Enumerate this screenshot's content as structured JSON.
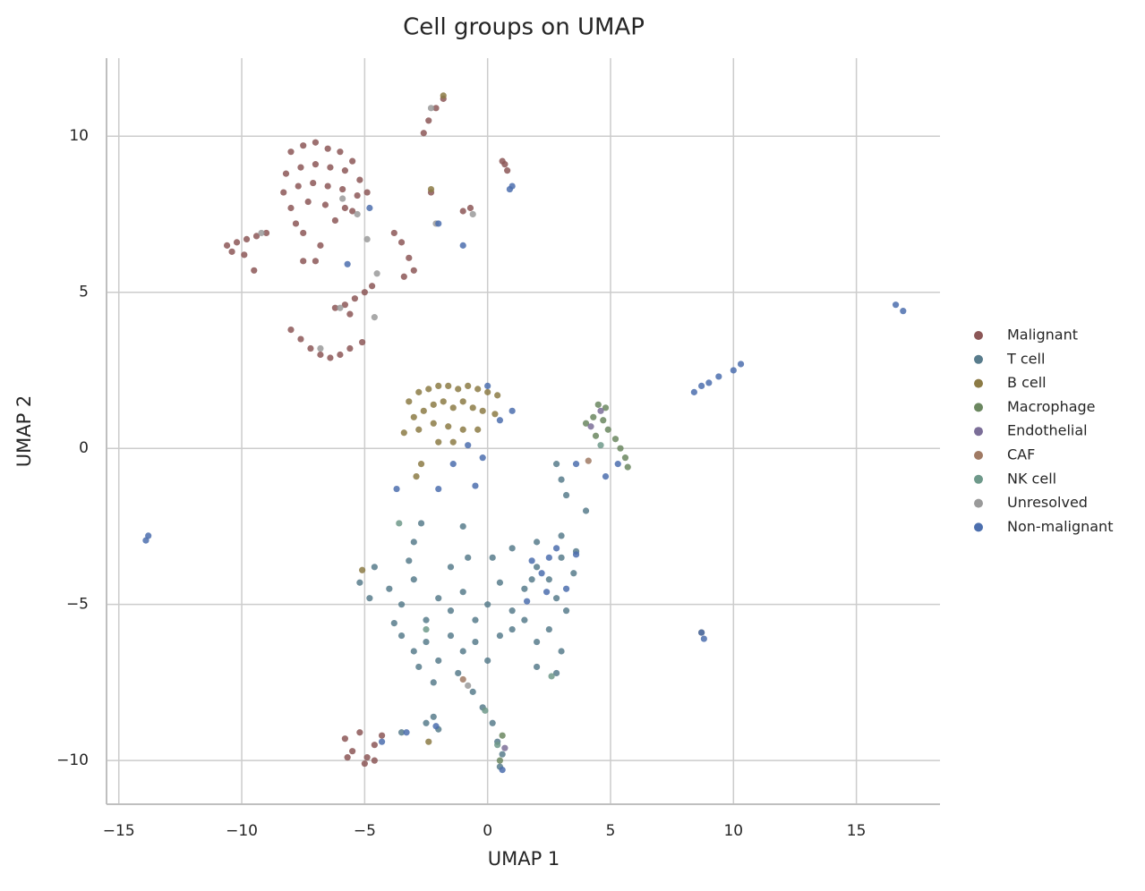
{
  "chart_data": {
    "type": "scatter",
    "title": "Cell groups on UMAP",
    "x_label": "UMAP 1",
    "y_label": "UMAP 2",
    "xlim": [
      -15.5,
      18.4
    ],
    "ylim": [
      -11.4,
      12.5
    ],
    "xticks": [
      {
        "value": -15,
        "label": "−15"
      },
      {
        "value": -10,
        "label": "−10"
      },
      {
        "value": -5,
        "label": "−5"
      },
      0,
      5,
      10,
      15
    ],
    "yticks": [
      {
        "value": -10,
        "label": "−10"
      },
      {
        "value": -5,
        "label": "−5"
      },
      0,
      5,
      10
    ],
    "grid": true,
    "legend": "right",
    "series": [
      {
        "name": "Malignant",
        "color": "#8c5757",
        "x": [
          -8,
          -7.5,
          -7,
          -6.5,
          -6,
          -5.5,
          -8.2,
          -7.6,
          -7,
          -6.4,
          -5.8,
          -5.2,
          -8.3,
          -7.7,
          -7.1,
          -6.5,
          -5.9,
          -5.3,
          -8,
          -7.3,
          -6.6,
          -5.8,
          -7.8,
          -6.2,
          -5.5,
          -4.9,
          -10.6,
          -10.2,
          -9.8,
          -9.4,
          -9,
          -10.4,
          -9.9,
          -9.5,
          -7.5,
          -7,
          -6.8,
          -7.5,
          -3.5,
          -3.2,
          -3,
          -3.4,
          -3.8,
          -6.2,
          -5.8,
          -5.4,
          -5,
          -4.7,
          -5.6,
          -8,
          -7.6,
          -7.2,
          -6.8,
          -6.4,
          -6,
          -5.6,
          -5.1,
          -2.4,
          -2.1,
          -1.8,
          -2.6,
          0.6,
          0.8,
          0.7,
          -2.3,
          -1,
          -0.7,
          -5.8,
          -5.5,
          -5.2,
          -4.9,
          -4.6,
          -4.3,
          -4.6,
          -5.7,
          -5
        ],
        "values": [
          9.5,
          9.7,
          9.8,
          9.6,
          9.5,
          9.2,
          8.8,
          9,
          9.1,
          9,
          8.9,
          8.6,
          8.2,
          8.4,
          8.5,
          8.4,
          8.3,
          8.1,
          7.7,
          7.9,
          7.8,
          7.7,
          7.2,
          7.3,
          7.6,
          8.2,
          6.5,
          6.6,
          6.7,
          6.8,
          6.9,
          6.3,
          6.2,
          5.7,
          6,
          6,
          6.5,
          6.9,
          6.6,
          6.1,
          5.7,
          5.5,
          6.9,
          4.5,
          4.6,
          4.8,
          5,
          5.2,
          4.3,
          3.8,
          3.5,
          3.2,
          3,
          2.9,
          3,
          3.2,
          3.4,
          10.5,
          10.9,
          11.2,
          10.1,
          9.2,
          8.9,
          9.1,
          8.2,
          7.6,
          7.7,
          -9.3,
          -9.7,
          -9.1,
          -9.9,
          -9.5,
          -9.2,
          -10,
          -9.9,
          -10.1
        ]
      },
      {
        "name": "T cell",
        "color": "#587c8c",
        "x": [
          -4,
          -3.5,
          -3,
          -2.5,
          -2,
          -1.5,
          -1,
          -0.5,
          0,
          0.5,
          1,
          1.5,
          2,
          2.5,
          3,
          3.5,
          2,
          3,
          1,
          0.2,
          -3.5,
          -3,
          -2.5,
          -2,
          -1.5,
          -1,
          -0.5,
          0,
          0.5,
          1,
          1.5,
          2,
          2.5,
          3,
          2.8,
          2,
          -2.8,
          -2.2,
          -1.2,
          -0.6,
          -0.2,
          0.2,
          -3,
          -2.7,
          -3.2,
          -4.6,
          -5.2,
          -4.8,
          -2.5,
          -2.2,
          -2,
          -3.5,
          0.4,
          0.6,
          0.5,
          -1.5,
          -0.8,
          -3.8,
          1.8,
          2.8,
          3.2,
          3.6,
          -1,
          4,
          3.2,
          3,
          2.8
        ],
        "values": [
          -4.5,
          -5,
          -4.2,
          -5.5,
          -4.8,
          -5.2,
          -4.6,
          -5.5,
          -5,
          -4.3,
          -5.2,
          -4.5,
          -3.8,
          -4.2,
          -3.5,
          -4,
          -3,
          -2.8,
          -3.2,
          -3.5,
          -6,
          -6.5,
          -6.2,
          -6.8,
          -6,
          -6.5,
          -6.2,
          -6.8,
          -6,
          -5.8,
          -5.5,
          -6.2,
          -5.8,
          -6.5,
          -7.2,
          -7,
          -7,
          -7.5,
          -7.2,
          -7.8,
          -8.3,
          -8.8,
          -3,
          -2.4,
          -3.6,
          -3.8,
          -4.3,
          -4.8,
          -8.8,
          -8.6,
          -9,
          -9.1,
          -9.4,
          -9.8,
          -10.2,
          -3.8,
          -3.5,
          -5.6,
          -4.2,
          -4.8,
          -5.2,
          -3.3,
          -2.5,
          -2,
          -1.5,
          -1,
          -0.5
        ]
      },
      {
        "name": "B cell",
        "color": "#8c7b45",
        "x": [
          -3.2,
          -2.8,
          -2.4,
          -2,
          -1.6,
          -1.2,
          -0.8,
          -0.4,
          0,
          0.4,
          -3,
          -2.6,
          -2.2,
          -1.8,
          -1.4,
          -1,
          -0.6,
          -0.2,
          0.3,
          -3.4,
          -2.8,
          -2.2,
          -1.6,
          -1,
          -0.4,
          -2,
          -1.4,
          -2.7,
          -2.9,
          -2.4,
          -5.1,
          8.7,
          -2.3,
          -1.8
        ],
        "values": [
          1.5,
          1.8,
          1.9,
          2,
          2,
          1.9,
          2,
          1.9,
          1.8,
          1.7,
          1,
          1.2,
          1.4,
          1.5,
          1.3,
          1.5,
          1.3,
          1.2,
          1.1,
          0.5,
          0.6,
          0.8,
          0.7,
          0.6,
          0.6,
          0.2,
          0.2,
          -0.5,
          -0.9,
          -9.4,
          -3.9,
          -5.9,
          8.3,
          11.3
        ]
      },
      {
        "name": "Macrophage",
        "color": "#6b8760",
        "x": [
          4.5,
          4.8,
          4.3,
          4.7,
          4.9,
          5.2,
          5.4,
          5.6,
          5.7,
          4,
          4.4,
          0.5,
          0.6
        ],
        "values": [
          1.4,
          1.3,
          1,
          0.9,
          0.6,
          0.3,
          0,
          -0.3,
          -0.6,
          0.8,
          0.4,
          -10,
          -9.2
        ]
      },
      {
        "name": "Endothelial",
        "color": "#7b6e98",
        "x": [
          4.6,
          4.2,
          0.7
        ],
        "values": [
          1.2,
          0.7,
          -9.6
        ]
      },
      {
        "name": "CAF",
        "color": "#a07a64",
        "x": [
          4.1,
          -1
        ],
        "values": [
          -0.4,
          -7.4
        ]
      },
      {
        "name": "NK cell",
        "color": "#6e998a",
        "x": [
          0.4,
          -0.1,
          2.6,
          -2.5,
          -3.6,
          4.6
        ],
        "values": [
          -9.5,
          -8.4,
          -7.3,
          -5.8,
          -2.4,
          0.1
        ]
      },
      {
        "name": "Unresolved",
        "color": "#9a9a9a",
        "x": [
          -6,
          -5.9,
          -4.9,
          -2.3,
          -2.1,
          -4.6,
          -6.8,
          -9.2,
          -0.6,
          -0.8,
          -4.5,
          -5.3
        ],
        "values": [
          4.5,
          8,
          6.7,
          10.9,
          7.2,
          4.2,
          3.2,
          6.9,
          7.5,
          -7.6,
          5.6,
          7.5
        ]
      },
      {
        "name": "Non-malignant",
        "color": "#4c6fae",
        "x": [
          9.4,
          9,
          8.7,
          10,
          10.3,
          8.4,
          16.6,
          16.9,
          -13.8,
          -13.9,
          8.7,
          8.8,
          1,
          0.9,
          -1,
          -2,
          -4.8,
          -5.7,
          2.5,
          2.2,
          2.8,
          3.2,
          1.8,
          3.6,
          2.4,
          -0.5,
          -1.4,
          -0.2,
          -2,
          -3.7,
          0,
          1,
          0.5,
          3.6,
          4.8,
          5.3,
          -3.3,
          -4.3,
          0.6,
          -2.1,
          1.6,
          -0.8
        ],
        "values": [
          2.3,
          2.1,
          2,
          2.5,
          2.7,
          1.8,
          4.6,
          4.4,
          -2.8,
          -2.95,
          -5.9,
          -6.1,
          8.4,
          8.3,
          6.5,
          7.2,
          7.7,
          5.9,
          -3.5,
          -4,
          -3.2,
          -4.5,
          -3.6,
          -3.4,
          -4.6,
          -1.2,
          -0.5,
          -0.3,
          -1.3,
          -1.3,
          2,
          1.2,
          0.9,
          -0.5,
          -0.9,
          -0.5,
          -9.1,
          -9.4,
          -10.3,
          -8.9,
          -4.9,
          0.1
        ]
      }
    ]
  }
}
